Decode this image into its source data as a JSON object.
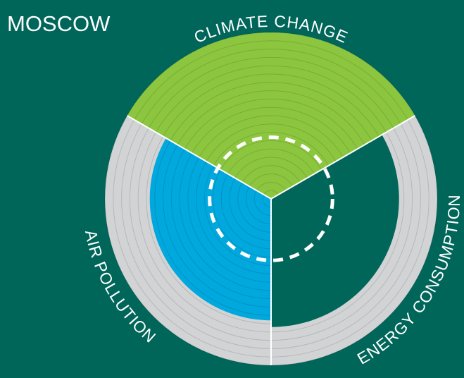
{
  "chart_data": {
    "type": "polar",
    "title": "MOSCOW",
    "categories": [
      "CLIMATE CHANGE",
      "ENERGY CONSUMPTION",
      "AIR POLLUTION"
    ],
    "values": [
      100,
      77,
      73
    ],
    "colors": [
      "#8cc63f",
      "#00665a",
      "#00a8de"
    ],
    "track_color": "#d1d3d4",
    "background": "#00665a",
    "rlim": [
      0,
      100
    ],
    "rticks": [
      5,
      10,
      15,
      20,
      25,
      30,
      35,
      40,
      45,
      50,
      55,
      60,
      65,
      70,
      75,
      80,
      85,
      90,
      95,
      100
    ],
    "reference_value": 37
  }
}
